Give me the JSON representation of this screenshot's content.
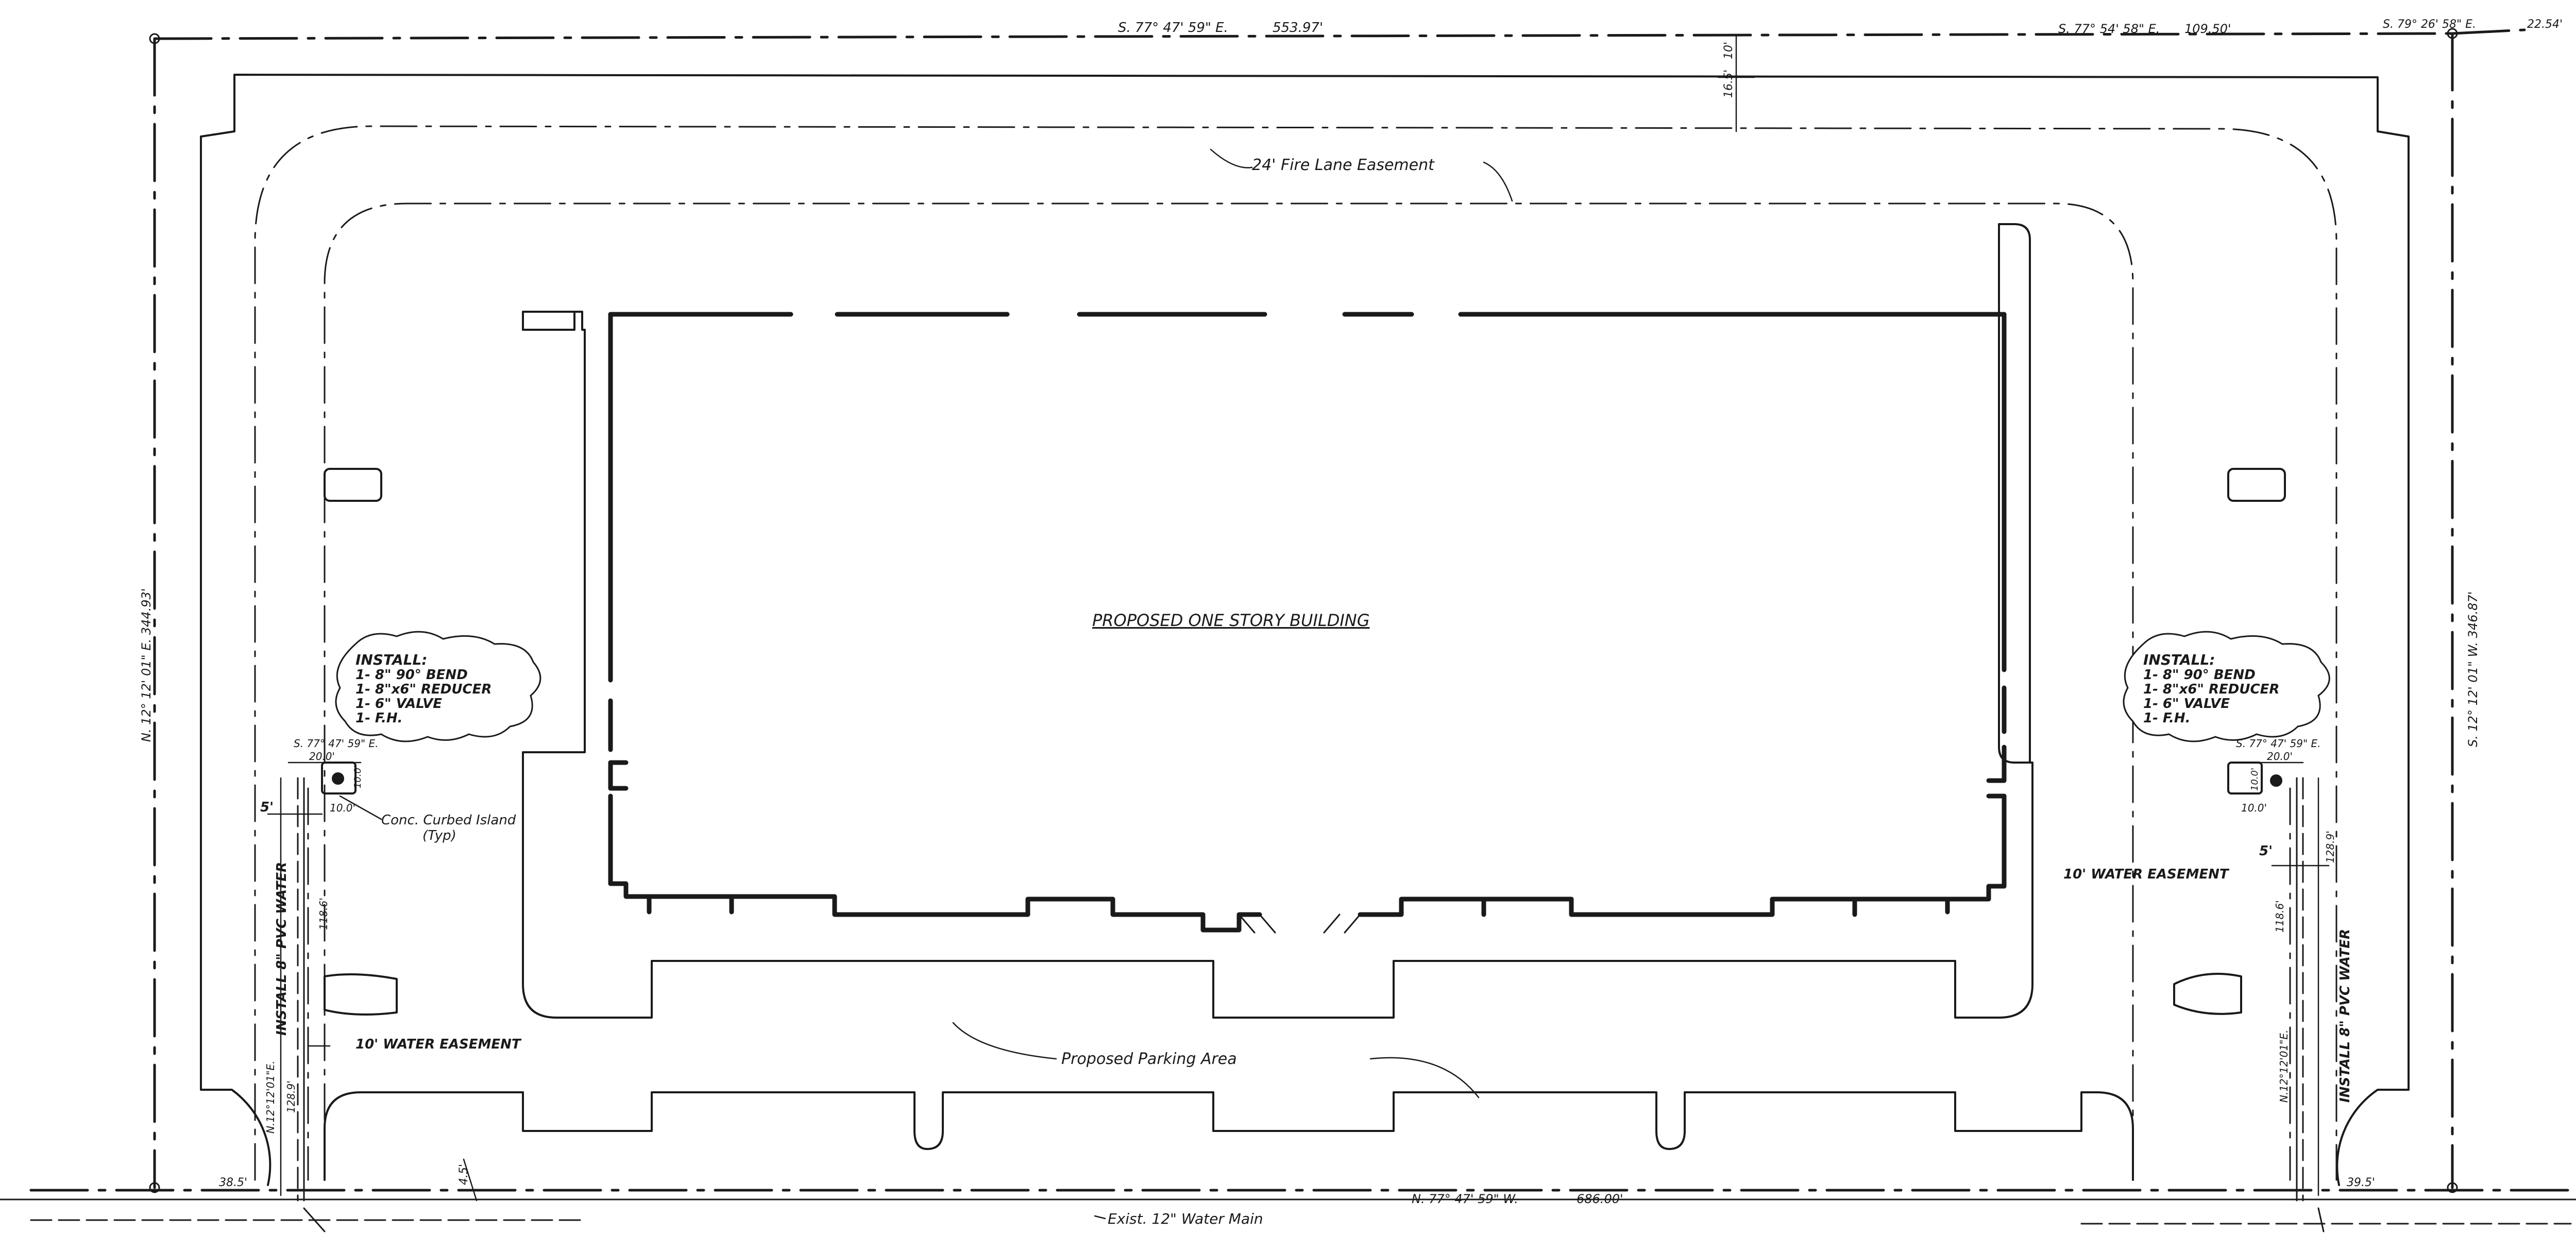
{
  "boundary": {
    "north_bearing_1": "S. 77° 47' 59\" E.",
    "north_dist_1": "553.97'",
    "north_bearing_2": "S. 77° 54' 58\" E.",
    "north_dist_2": "109.50'",
    "north_bearing_3": "S. 79° 26' 58\" E.",
    "north_dist_3": "22.54'",
    "west_line": "N. 12° 12' 01\" E.   344.93'",
    "east_line": "S. 12° 12' 01\" W.   346.87'",
    "south_line": "N. 77° 47' 59\" W.",
    "south_dist": "686.00'"
  },
  "labels": {
    "fire_lane": "24' Fire Lane Easement",
    "building": "PROPOSED ONE STORY BUILDING",
    "parking": "Proposed    Parking    Area",
    "water_main": "Exist. 12\" Water Main",
    "curbed_island": "Conc. Curbed Island",
    "curbed_island_typ": "(Typ)",
    "dim_north_setback_1": "16.5'",
    "dim_north_setback_2": "10'",
    "dim_corner_sw": "38.5'",
    "dim_corner_se": "39.5'",
    "dim_small_south": "4.5'"
  },
  "west_hydrant": {
    "install_title": "INSTALL:",
    "install_items": [
      "1- 8\" 90° BEND",
      "1- 8\"x6\" REDUCER",
      "1- 6\" VALVE",
      "1- F.H."
    ],
    "bearing": "S. 77° 47' 59\" E.",
    "dist_20": "20.0'",
    "dist_10a": "10.0'",
    "dist_10b": "10.0'",
    "dim_5": "5'",
    "pipe_label": "INSTALL 8\" PVC WATER",
    "pipe_length": "118.6'",
    "easement": "10' WATER EASEMENT",
    "bottom_bearing": "N.12°12'01\"E.",
    "bottom_dist": "128.9'"
  },
  "east_hydrant": {
    "install_title": "INSTALL:",
    "install_items": [
      "1- 8\" 90° BEND",
      "1- 8\"x6\" REDUCER",
      "1- 6\" VALVE",
      "1- F.H."
    ],
    "bearing": "S. 77° 47' 59\" E.",
    "dist_20": "20.0'",
    "dist_10a": "10.0'",
    "dist_10b": "10.0'",
    "dim_5": "5'",
    "pipe_label": "INSTALL 8\" PVC WATER",
    "pipe_length": "118.6'",
    "easement": "10' WATER EASEMENT",
    "bottom_bearing": "N.12°12'01\"E.",
    "right_dist": "128.9'"
  }
}
